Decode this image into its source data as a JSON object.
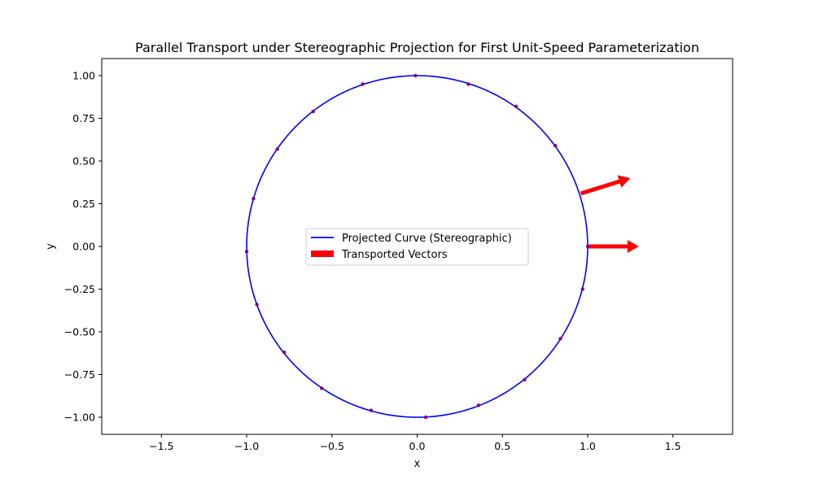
{
  "chart_data": {
    "type": "line",
    "title": "Parallel Transport under Stereographic Projection for First Unit-Speed Parameterization",
    "xlabel": "x",
    "ylabel": "y",
    "xlim": [
      -1.85,
      1.85
    ],
    "ylim": [
      -1.1,
      1.1
    ],
    "xticks": [
      -1.5,
      -1.0,
      -0.5,
      0.0,
      0.5,
      1.0,
      1.5
    ],
    "xtick_labels": [
      "−1.5",
      "−1.0",
      "−0.5",
      "0.0",
      "0.5",
      "1.0",
      "1.5"
    ],
    "yticks": [
      1.0,
      0.75,
      0.5,
      0.25,
      0.0,
      -0.25,
      -0.5,
      -0.75,
      -1.0
    ],
    "ytick_labels": [
      "1.00",
      "0.75",
      "0.50",
      "0.25",
      "0.00",
      "−0.25",
      "−0.50",
      "−0.75",
      "−1.00"
    ],
    "grid": false,
    "legend_position": "center",
    "series": [
      {
        "name": "Projected Curve (Stereographic)",
        "kind": "curve",
        "shape": "unit circle",
        "color": "#0000ff"
      },
      {
        "name": "Transported Vectors",
        "kind": "vectors",
        "color": "#ff0000",
        "vectors": [
          {
            "x": 1.0,
            "y": 0.0,
            "dx": 0.3,
            "dy": 0.0
          },
          {
            "x": 0.96,
            "y": 0.31,
            "dx": 0.29,
            "dy": 0.09
          }
        ]
      }
    ],
    "markers": {
      "color": "#800080",
      "points": [
        {
          "x": 1.0,
          "y": 0.0
        },
        {
          "x": 0.97,
          "y": -0.25
        },
        {
          "x": 0.84,
          "y": -0.54
        },
        {
          "x": 0.63,
          "y": -0.78
        },
        {
          "x": 0.36,
          "y": -0.93
        },
        {
          "x": 0.05,
          "y": -1.0
        },
        {
          "x": -0.27,
          "y": -0.96
        },
        {
          "x": -0.56,
          "y": -0.83
        },
        {
          "x": -0.78,
          "y": -0.62
        },
        {
          "x": -0.94,
          "y": -0.34
        },
        {
          "x": -1.0,
          "y": -0.03
        },
        {
          "x": -0.96,
          "y": 0.28
        },
        {
          "x": -0.82,
          "y": 0.57
        },
        {
          "x": -0.61,
          "y": 0.79
        },
        {
          "x": -0.32,
          "y": 0.95
        },
        {
          "x": -0.01,
          "y": 1.0
        },
        {
          "x": 0.3,
          "y": 0.95
        },
        {
          "x": 0.58,
          "y": 0.82
        },
        {
          "x": 0.81,
          "y": 0.59
        }
      ]
    }
  }
}
